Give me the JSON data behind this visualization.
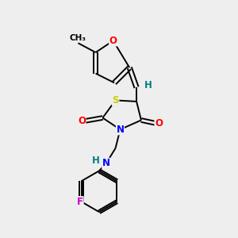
{
  "background_color": "#eeeeee",
  "bond_color": "#000000",
  "atom_colors": {
    "O": "#ff0000",
    "N": "#0000ff",
    "S": "#cccc00",
    "F": "#cc00cc",
    "H": "#008080",
    "C": "#000000"
  },
  "figsize": [
    3.0,
    3.0
  ],
  "dpi": 100,
  "lw": 1.4,
  "fontsize": 8.5
}
